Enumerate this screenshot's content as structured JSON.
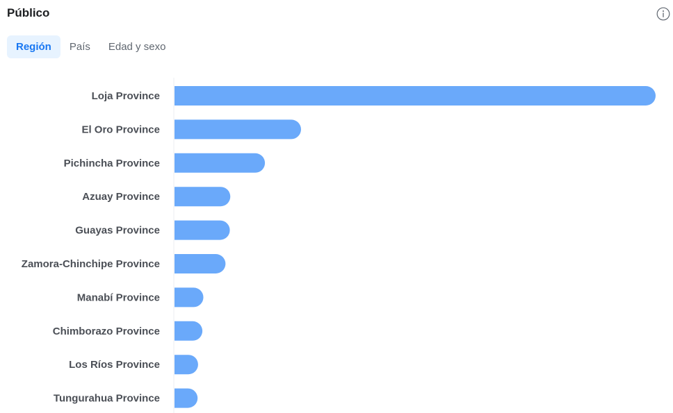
{
  "header": {
    "title": "Público",
    "info_icon": "info-icon"
  },
  "tabs": [
    {
      "label": "Región",
      "active": true
    },
    {
      "label": "País",
      "active": false
    },
    {
      "label": "Edad y sexo",
      "active": false
    }
  ],
  "colors": {
    "bar": "#6aa9fa",
    "active_tab_bg": "#e7f3ff",
    "active_tab_text": "#1877f2",
    "axis_line": "#ebedf0"
  },
  "chart_data": {
    "type": "bar",
    "orientation": "horizontal",
    "categories": [
      "Loja Province",
      "El Oro Province",
      "Pichincha Province",
      "Azuay Province",
      "Guayas Province",
      "Zamora-Chinchipe Province",
      "Manabí Province",
      "Chimborazo Province",
      "Los Ríos Province",
      "Tungurahua Province"
    ],
    "values": [
      100,
      26.3,
      18.8,
      11.6,
      11.5,
      10.6,
      6.0,
      5.8,
      4.9,
      4.8
    ],
    "xlim": [
      0,
      100
    ],
    "grid": false,
    "legend": "none"
  }
}
